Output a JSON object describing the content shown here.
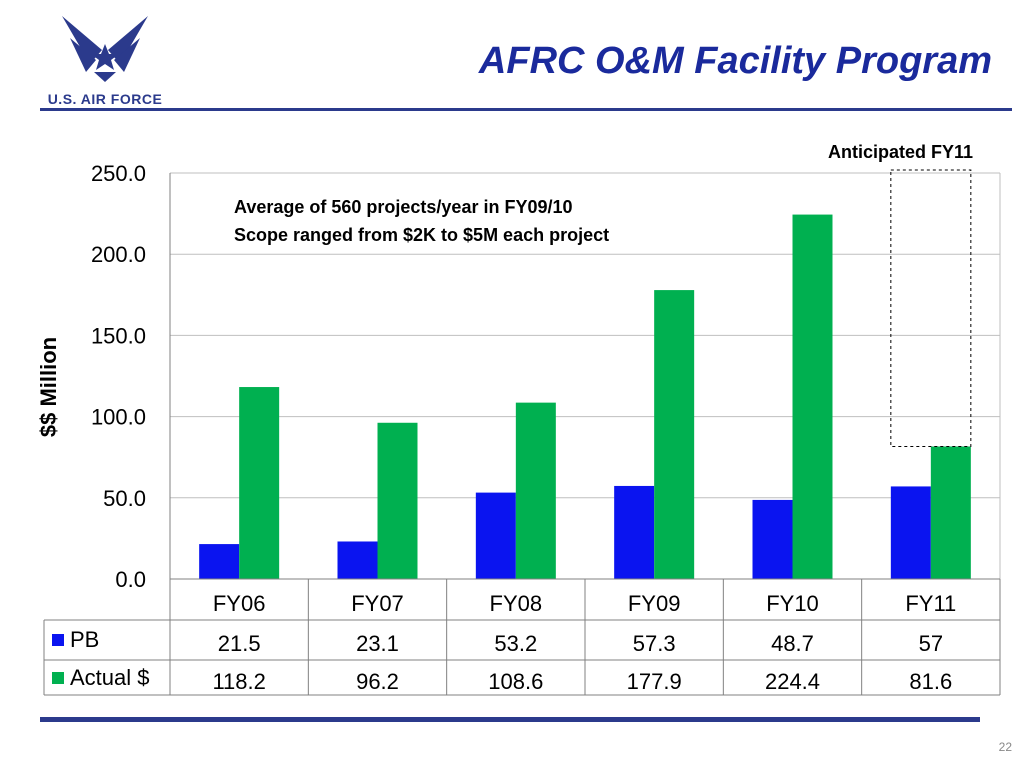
{
  "header": {
    "logo_text": "U.S. AIR FORCE",
    "title": "AFRC O&M Facility Program"
  },
  "annotations": {
    "line1": "Average of 560 projects/year in FY09/10",
    "line2": "Scope ranged from $2K to $5M each project",
    "callout": "Anticipated FY11"
  },
  "footer": {
    "page_number": "22"
  },
  "colors": {
    "pb": "#0a14f0",
    "actual": "#00b050",
    "brand": "#2b3a8c",
    "title": "#1a2a9c"
  },
  "chart_data": {
    "type": "bar",
    "title": "",
    "xlabel": "",
    "ylabel": "$$ Million",
    "ylim": [
      0,
      250
    ],
    "yticks": [
      "0.0",
      "50.0",
      "100.0",
      "150.0",
      "200.0",
      "250.0"
    ],
    "grid": true,
    "categories": [
      "FY06",
      "FY07",
      "FY08",
      "FY09",
      "FY10",
      "FY11"
    ],
    "series": [
      {
        "name": "PB",
        "values": [
          21.5,
          23.1,
          53.2,
          57.3,
          48.7,
          57
        ],
        "labels": [
          "21.5",
          "23.1",
          "53.2",
          "57.3",
          "48.7",
          "57"
        ]
      },
      {
        "name": "Actual $",
        "values": [
          118.2,
          96.2,
          108.6,
          177.9,
          224.4,
          81.6
        ],
        "labels": [
          "118.2",
          "96.2",
          "108.6",
          "177.9",
          "224.4",
          "81.6"
        ]
      }
    ],
    "data_table": true
  }
}
